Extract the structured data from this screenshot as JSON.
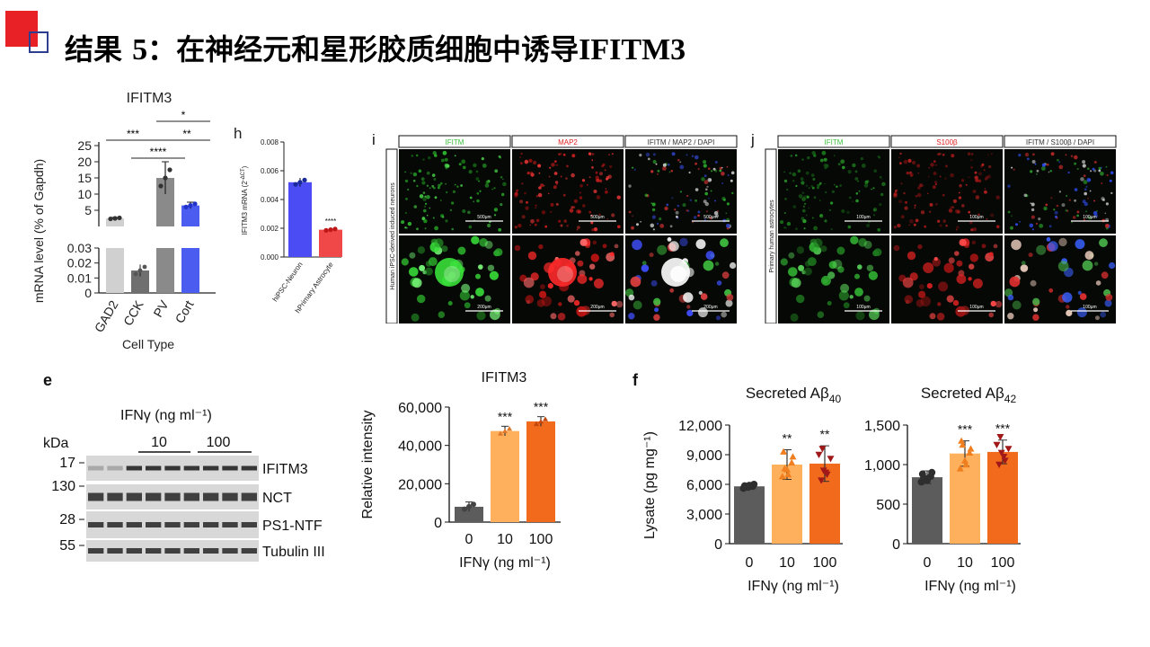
{
  "slide": {
    "title_cn_prefix": "结果",
    "title_num": "5",
    "title_cn_suffix": "：在神经元和星形胶质细胞中诱导",
    "title_gene": "IFITM3"
  },
  "panelA": {
    "title": "IFITM3",
    "ylabel": "mRNA level (% of Gapdh)",
    "xlabel": "Cell Type",
    "yticks_upper": [
      "25",
      "20",
      "15",
      "10",
      "5"
    ],
    "yticks_lower": [
      "0.03",
      "0.02",
      "0.01",
      "0"
    ],
    "sig": [
      "*",
      "***",
      "**",
      "****"
    ]
  },
  "panelH": {
    "letter": "h",
    "ylabel": "IFITM3 mRNA (2",
    "ylabel_sup": "-ΔCT",
    "ylabel_end": ")",
    "yticks": [
      "0.008",
      "0.006",
      "0.004",
      "0.002",
      "0.000"
    ],
    "sig": "****"
  },
  "panelI": {
    "letter": "i",
    "headers": [
      "IFITM",
      "MAP2",
      "IFITM / MAP2 / DAPI"
    ],
    "side_label": "Human iPSC-derived induced neurons",
    "scale_top": [
      "500μm",
      "500μm",
      "500μm"
    ],
    "scale_bottom": [
      "200μm",
      "200μm",
      "200μm"
    ]
  },
  "panelJ": {
    "letter": "j",
    "headers": [
      "IFITM",
      "S100β",
      "IFITM / S100β / DAPI"
    ],
    "side_label": "Primary human astrocytes",
    "scale_top": [
      "100μm",
      "100μm",
      "100μm"
    ],
    "scale_bottom": [
      "100μm",
      "100μm",
      "100μm"
    ]
  },
  "panelE": {
    "letter": "e",
    "ifn_label": "IFNγ (ng ml⁻¹)",
    "kda": "kDa",
    "dose_10": "10",
    "dose_100": "100",
    "mw": [
      "17",
      "130",
      "28",
      "55"
    ],
    "proteins": [
      "IFITM3",
      "NCT",
      "PS1-NTF",
      "Tubulin III"
    ]
  },
  "panelE2": {
    "title": "IFITM3",
    "ylabel": "Relative intensity",
    "xlabel": "IFNγ (ng ml⁻¹)",
    "yticks": [
      "60,000",
      "40,000",
      "20,000",
      "0"
    ],
    "sig": [
      "***",
      "***"
    ]
  },
  "panelF": {
    "letter": "f",
    "ylabel": "Lysate (pg mg⁻¹)",
    "title1_main": "Secreted Aβ",
    "title1_sub": "40",
    "title2_main": "Secreted Aβ",
    "title2_sub": "42",
    "yticks1": [
      "12,000",
      "9,000",
      "6,000",
      "3,000",
      "0"
    ],
    "yticks2": [
      "1,500",
      "1,000",
      "500",
      "0"
    ],
    "xlabel": "IFNγ (ng ml⁻¹)",
    "sig1": [
      "**",
      "**"
    ],
    "sig2": [
      "***",
      "***"
    ]
  },
  "chart_data": [
    {
      "type": "bar",
      "panel": "cell-type",
      "title": "IFITM3",
      "categories": [
        "GAD2",
        "CCK",
        "PV",
        "Cort"
      ],
      "values": [
        2.5,
        0.015,
        15,
        6.5
      ],
      "errors": [
        0.3,
        0.004,
        5,
        1.0
      ],
      "xlabel": "Cell Type",
      "ylabel": "mRNA level (% of Gapdh)",
      "ylim_lower": [
        0,
        0.03
      ],
      "ylim_upper": [
        0,
        25
      ],
      "colors": [
        "#d0d0d0",
        "#6f6f6f",
        "#8a8a8a",
        "#4b5cf0"
      ]
    },
    {
      "type": "bar",
      "panel": "h",
      "categories": [
        "hiPSC-Neuron",
        "hPrimary Astrocyte"
      ],
      "values": [
        0.0052,
        0.0019
      ],
      "errors": [
        0.0003,
        0.0001
      ],
      "ylabel": "IFITM3 mRNA (2^-ΔCT)",
      "ylim": [
        0,
        0.008
      ],
      "colors": [
        "#4c4cf5",
        "#f04848"
      ]
    },
    {
      "type": "bar",
      "panel": "e",
      "title": "IFITM3",
      "categories": [
        "0",
        "10",
        "100"
      ],
      "values": [
        8000,
        47500,
        52500
      ],
      "errors": [
        2500,
        2500,
        2500
      ],
      "xlabel": "IFNγ (ng ml⁻¹)",
      "ylabel": "Relative intensity",
      "ylim": [
        0,
        60000
      ],
      "colors": [
        "#5c5c5c",
        "#ffb05c",
        "#f26a1b"
      ]
    },
    {
      "type": "bar",
      "panel": "f-40",
      "title": "Secreted Aβ40",
      "categories": [
        "0",
        "10",
        "100"
      ],
      "values": [
        5800,
        8000,
        8100
      ],
      "errors": [
        300,
        1500,
        1800
      ],
      "points": [
        [
          5600,
          5700,
          5800,
          5850,
          5900,
          6000,
          5750
        ],
        [
          6800,
          7500,
          8200,
          9300,
          7000,
          8800,
          7600
        ],
        [
          6400,
          7200,
          8600,
          9600,
          7000,
          9000,
          7400
        ]
      ],
      "xlabel": "IFNγ (ng ml⁻¹)",
      "ylabel": "Lysate (pg mg⁻¹)",
      "ylim": [
        0,
        12000
      ],
      "colors": [
        "#5c5c5c",
        "#ffb05c",
        "#f26a1b"
      ]
    },
    {
      "type": "bar",
      "panel": "f-42",
      "title": "Secreted Aβ42",
      "categories": [
        "0",
        "10",
        "100"
      ],
      "values": [
        840,
        1140,
        1160
      ],
      "errors": [
        80,
        160,
        150
      ],
      "points": [
        [
          780,
          820,
          850,
          880,
          800,
          900,
          830
        ],
        [
          950,
          1050,
          1150,
          1300,
          1000,
          1200,
          1250
        ],
        [
          1000,
          1100,
          1200,
          1350,
          1050,
          1250,
          1150
        ]
      ],
      "xlabel": "IFNγ (ng ml⁻¹)",
      "ylim": [
        0,
        1500
      ],
      "colors": [
        "#5c5c5c",
        "#ffb05c",
        "#f26a1b"
      ]
    }
  ]
}
